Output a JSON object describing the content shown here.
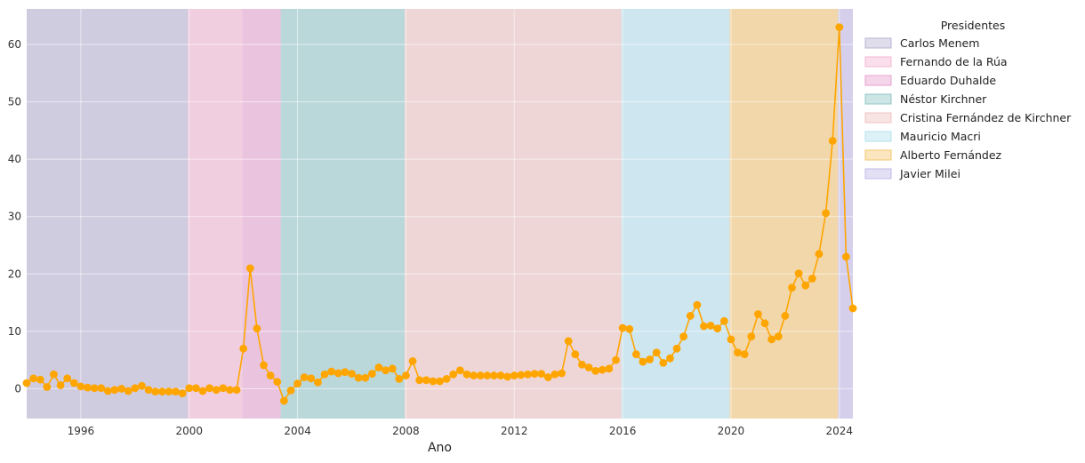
{
  "chart_data": {
    "type": "line",
    "xlabel": "Ano",
    "ylabel": "",
    "xlim": [
      1994.0,
      2024.5
    ],
    "ylim": [
      -5.2,
      66.2
    ],
    "x_ticks": [
      1996,
      2000,
      2004,
      2008,
      2012,
      2016,
      2020,
      2024
    ],
    "y_ticks": [
      0,
      10,
      20,
      30,
      40,
      50,
      60
    ],
    "grid": true,
    "legend": {
      "title": "Presidentes",
      "placement": "outside-right",
      "entries": [
        {
          "name": "Carlos Menem",
          "color": "#b8b3d2"
        },
        {
          "name": "Fernando de la Rúa",
          "color": "#f4b6d2"
        },
        {
          "name": "Eduardo Duhalde",
          "color": "#e9a2d0"
        },
        {
          "name": "Néstor Kirchner",
          "color": "#91c6c6"
        },
        {
          "name": "Cristina Fernández de Kirchner",
          "color": "#f0c4c0"
        },
        {
          "name": "Mauricio Macri",
          "color": "#b4e2ec"
        },
        {
          "name": "Alberto Fernández",
          "color": "#f5c66e"
        },
        {
          "name": "Javier Milei",
          "color": "#c2b8e8"
        }
      ]
    },
    "periods": [
      {
        "name": "Carlos Menem",
        "start": 1994.0,
        "end": 1999.95
      },
      {
        "name": "Fernando de la Rúa",
        "start": 1999.95,
        "end": 2001.97
      },
      {
        "name": "Eduardo Duhalde",
        "start": 2001.97,
        "end": 2003.38
      },
      {
        "name": "Néstor Kirchner",
        "start": 2003.38,
        "end": 2007.95
      },
      {
        "name": "Cristina Fernández de Kirchner",
        "start": 2007.95,
        "end": 2015.95
      },
      {
        "name": "Mauricio Macri",
        "start": 2015.95,
        "end": 2019.95
      },
      {
        "name": "Alberto Fernández",
        "start": 2019.95,
        "end": 2023.95
      },
      {
        "name": "Javier Milei",
        "start": 2023.95,
        "end": 2024.5
      }
    ],
    "series": [
      {
        "color": "#ffa500",
        "points": [
          [
            1994.0,
            1.0
          ],
          [
            1994.25,
            1.8
          ],
          [
            1994.5,
            1.6
          ],
          [
            1994.75,
            0.3
          ],
          [
            1995.0,
            2.5
          ],
          [
            1995.25,
            0.6
          ],
          [
            1995.5,
            1.8
          ],
          [
            1995.75,
            1.0
          ],
          [
            1996.0,
            0.4
          ],
          [
            1996.25,
            0.2
          ],
          [
            1996.5,
            0.1
          ],
          [
            1996.75,
            0.1
          ],
          [
            1997.0,
            -0.4
          ],
          [
            1997.25,
            -0.2
          ],
          [
            1997.5,
            0.0
          ],
          [
            1997.75,
            -0.4
          ],
          [
            1998.0,
            0.1
          ],
          [
            1998.25,
            0.5
          ],
          [
            1998.5,
            -0.2
          ],
          [
            1998.75,
            -0.5
          ],
          [
            1999.0,
            -0.5
          ],
          [
            1999.25,
            -0.5
          ],
          [
            1999.5,
            -0.5
          ],
          [
            1999.75,
            -0.8
          ],
          [
            2000.0,
            0.1
          ],
          [
            2000.25,
            0.1
          ],
          [
            2000.5,
            -0.4
          ],
          [
            2000.75,
            0.1
          ],
          [
            2001.0,
            -0.2
          ],
          [
            2001.25,
            0.1
          ],
          [
            2001.5,
            -0.2
          ],
          [
            2001.75,
            -0.2
          ],
          [
            2002.0,
            7.0
          ],
          [
            2002.25,
            21.0
          ],
          [
            2002.5,
            10.5
          ],
          [
            2002.75,
            4.1
          ],
          [
            2003.0,
            2.3
          ],
          [
            2003.25,
            1.2
          ],
          [
            2003.5,
            -2.1
          ],
          [
            2003.75,
            -0.3
          ],
          [
            2004.0,
            0.9
          ],
          [
            2004.25,
            2.0
          ],
          [
            2004.5,
            1.8
          ],
          [
            2004.75,
            1.1
          ],
          [
            2005.0,
            2.5
          ],
          [
            2005.25,
            3.0
          ],
          [
            2005.5,
            2.7
          ],
          [
            2005.75,
            2.9
          ],
          [
            2006.0,
            2.6
          ],
          [
            2006.25,
            1.9
          ],
          [
            2006.5,
            1.9
          ],
          [
            2006.75,
            2.6
          ],
          [
            2007.0,
            3.7
          ],
          [
            2007.25,
            3.2
          ],
          [
            2007.5,
            3.5
          ],
          [
            2007.75,
            1.7
          ],
          [
            2008.0,
            2.3
          ],
          [
            2008.25,
            4.8
          ],
          [
            2008.5,
            1.5
          ],
          [
            2008.75,
            1.5
          ],
          [
            2009.0,
            1.3
          ],
          [
            2009.25,
            1.3
          ],
          [
            2009.5,
            1.7
          ],
          [
            2009.75,
            2.5
          ],
          [
            2010.0,
            3.2
          ],
          [
            2010.25,
            2.5
          ],
          [
            2010.5,
            2.3
          ],
          [
            2010.75,
            2.3
          ],
          [
            2011.0,
            2.3
          ],
          [
            2011.25,
            2.3
          ],
          [
            2011.5,
            2.3
          ],
          [
            2011.75,
            2.1
          ],
          [
            2012.0,
            2.3
          ],
          [
            2012.25,
            2.4
          ],
          [
            2012.5,
            2.5
          ],
          [
            2012.75,
            2.6
          ],
          [
            2013.0,
            2.6
          ],
          [
            2013.25,
            2.0
          ],
          [
            2013.5,
            2.5
          ],
          [
            2013.75,
            2.7
          ],
          [
            2014.0,
            8.3
          ],
          [
            2014.25,
            6.0
          ],
          [
            2014.5,
            4.2
          ],
          [
            2014.75,
            3.7
          ],
          [
            2015.0,
            3.1
          ],
          [
            2015.25,
            3.3
          ],
          [
            2015.5,
            3.5
          ],
          [
            2015.75,
            5.0
          ],
          [
            2016.0,
            10.6
          ],
          [
            2016.25,
            10.4
          ],
          [
            2016.5,
            6.0
          ],
          [
            2016.75,
            4.7
          ],
          [
            2017.0,
            5.1
          ],
          [
            2017.25,
            6.3
          ],
          [
            2017.5,
            4.5
          ],
          [
            2017.75,
            5.3
          ],
          [
            2018.0,
            7.0
          ],
          [
            2018.25,
            9.1
          ],
          [
            2018.5,
            12.7
          ],
          [
            2018.75,
            14.6
          ],
          [
            2019.0,
            10.9
          ],
          [
            2019.25,
            11.0
          ],
          [
            2019.5,
            10.5
          ],
          [
            2019.75,
            11.8
          ],
          [
            2020.0,
            8.6
          ],
          [
            2020.25,
            6.3
          ],
          [
            2020.5,
            6.0
          ],
          [
            2020.75,
            9.1
          ],
          [
            2021.0,
            13.0
          ],
          [
            2021.25,
            11.4
          ],
          [
            2021.5,
            8.6
          ],
          [
            2021.75,
            9.1
          ],
          [
            2022.0,
            12.7
          ],
          [
            2022.25,
            17.6
          ],
          [
            2022.5,
            20.1
          ],
          [
            2022.75,
            18.0
          ],
          [
            2023.0,
            19.2
          ],
          [
            2023.25,
            23.5
          ],
          [
            2023.5,
            30.6
          ],
          [
            2023.75,
            43.2
          ],
          [
            2024.0,
            63.0
          ],
          [
            2024.25,
            23.0
          ],
          [
            2024.5,
            14.0
          ]
        ]
      }
    ]
  }
}
